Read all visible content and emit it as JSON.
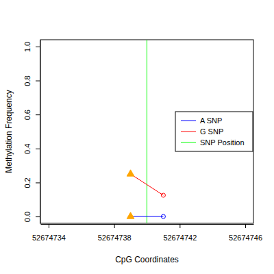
{
  "chart_data": {
    "type": "line",
    "xlabel": "CpG Coordinates",
    "ylabel": "Methylation Frequency",
    "x": [
      52674739,
      52674741
    ],
    "series": [
      {
        "name": "A SNP",
        "color": "#0000ff",
        "colors": [
          "#ffa500",
          "#0000ff"
        ],
        "values": [
          0,
          0
        ]
      },
      {
        "name": "G SNP",
        "color": "#ff0000",
        "colors": [
          "#ffa500",
          "#ff0000"
        ],
        "values": [
          0.25,
          0.125
        ]
      }
    ],
    "snp_position": {
      "name": "SNP Position",
      "color": "#00ff00",
      "x": 52674740
    },
    "xlim": [
      52674733.5,
      52674746.5
    ],
    "ylim": [
      -0.04,
      1.04
    ],
    "xticks": [
      52674734,
      52674738,
      52674742,
      52674746
    ],
    "yticks": [
      {
        "value": 0,
        "label": "0.0"
      },
      {
        "value": 0.2,
        "label": "0.2"
      },
      {
        "value": 0.4,
        "label": "0.4"
      },
      {
        "value": 0.6,
        "label": "0.6"
      },
      {
        "value": 0.8,
        "label": "0.8"
      },
      {
        "value": 1,
        "label": "1.0"
      }
    ],
    "legend": "right"
  }
}
